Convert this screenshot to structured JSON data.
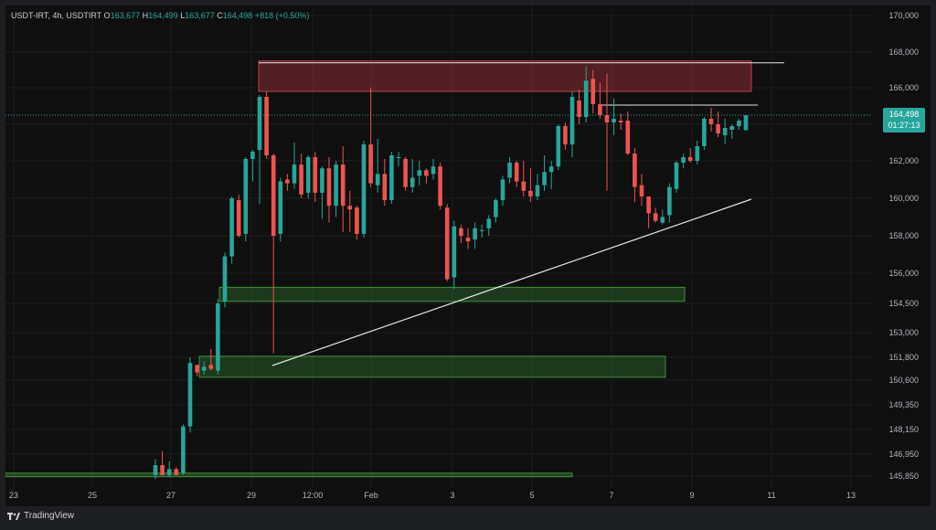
{
  "header": {
    "symbol": "USDT-IRT, 4h, USDTIRT",
    "o_label": "O",
    "o": "163,677",
    "h_label": "H",
    "h": "164,499",
    "l_label": "L",
    "l": "163,677",
    "c_label": "C",
    "c": "164,498",
    "change": "+818 (+0.50%)"
  },
  "last_price": {
    "value": "164,498",
    "countdown": "01:27:13"
  },
  "footer": {
    "brand": "TradingView"
  },
  "colors": {
    "up": "#26a69a",
    "down": "#ef5350",
    "background": "#0f0f0f",
    "supply_zone": "#8a2b34",
    "demand_zone": "#2e6b2c",
    "lines": "#e6e6e6"
  },
  "chart_data": {
    "type": "candlestick",
    "timeframe": "4h",
    "y_ticks": [
      "170,000",
      "168,000",
      "166,000",
      "164,000",
      "162,000",
      "160,000",
      "158,000",
      "156,000",
      "154,500",
      "153,000",
      "151,800",
      "150,600",
      "149,350",
      "148,150",
      "146,950",
      "145,850"
    ],
    "x_ticks": [
      "23",
      "25",
      "27",
      "29",
      "12:00",
      "Feb",
      "3",
      "5",
      "7",
      "9",
      "11",
      "13"
    ],
    "candles": [
      [
        145900,
        146700,
        145700,
        146400
      ],
      [
        146400,
        147100,
        145900,
        145900
      ],
      [
        145900,
        146600,
        145800,
        146200
      ],
      [
        146200,
        146300,
        145900,
        145900
      ],
      [
        146000,
        148400,
        145900,
        148300
      ],
      [
        148300,
        151800,
        148000,
        151500
      ],
      [
        151400,
        151400,
        150800,
        151000
      ],
      [
        151100,
        151600,
        150900,
        151300
      ],
      [
        151400,
        152200,
        151100,
        151200
      ],
      [
        151100,
        154700,
        150900,
        154500
      ],
      [
        154600,
        157100,
        154300,
        156900
      ],
      [
        156900,
        160100,
        156500,
        160000
      ],
      [
        159900,
        160200,
        157900,
        158000
      ],
      [
        158100,
        162200,
        157700,
        162100
      ],
      [
        162100,
        162600,
        160900,
        162500
      ],
      [
        162600,
        165600,
        159700,
        165500
      ],
      [
        165500,
        165800,
        162100,
        162300
      ],
      [
        162300,
        162400,
        152000,
        158000
      ],
      [
        158100,
        161100,
        157700,
        160900
      ],
      [
        161000,
        161300,
        160400,
        160800
      ],
      [
        160800,
        163000,
        160500,
        161800
      ],
      [
        161800,
        162400,
        160000,
        160200
      ],
      [
        160300,
        162300,
        160000,
        162200
      ],
      [
        162200,
        162500,
        159800,
        160300
      ],
      [
        160300,
        161700,
        158900,
        161600
      ],
      [
        161600,
        162200,
        158700,
        159600
      ],
      [
        159600,
        162000,
        159000,
        161800
      ],
      [
        161800,
        162800,
        158200,
        159600
      ],
      [
        159600,
        160400,
        158200,
        159400
      ],
      [
        159500,
        159600,
        157800,
        158100
      ],
      [
        158100,
        163100,
        157900,
        162900
      ],
      [
        162900,
        166000,
        160600,
        160800
      ],
      [
        160700,
        163200,
        160300,
        161300
      ],
      [
        161300,
        162100,
        159600,
        159900
      ],
      [
        159900,
        162500,
        159700,
        162300
      ],
      [
        162200,
        162500,
        161700,
        162200
      ],
      [
        162100,
        162200,
        160400,
        160600
      ],
      [
        160600,
        162100,
        160300,
        161100
      ],
      [
        161200,
        162000,
        160700,
        161500
      ],
      [
        161500,
        161600,
        160800,
        161200
      ],
      [
        161300,
        162100,
        161000,
        161700
      ],
      [
        161700,
        161900,
        159400,
        159600
      ],
      [
        159500,
        159700,
        155600,
        155700
      ],
      [
        155800,
        158800,
        155200,
        158500
      ],
      [
        158400,
        158600,
        157600,
        158000
      ],
      [
        157900,
        158400,
        157300,
        157700
      ],
      [
        157800,
        158700,
        157300,
        158400
      ],
      [
        158300,
        158600,
        157900,
        158300
      ],
      [
        158400,
        159100,
        158000,
        158900
      ],
      [
        159000,
        160000,
        158700,
        159900
      ],
      [
        159900,
        161200,
        159600,
        161000
      ],
      [
        161100,
        162200,
        160800,
        161900
      ],
      [
        161900,
        162000,
        160600,
        160900
      ],
      [
        160900,
        162000,
        160100,
        160400
      ],
      [
        160400,
        161600,
        159800,
        160100
      ],
      [
        160100,
        161300,
        159900,
        160700
      ],
      [
        160700,
        162300,
        160400,
        161400
      ],
      [
        161400,
        162000,
        160500,
        161700
      ],
      [
        161700,
        164000,
        161500,
        163900
      ],
      [
        163900,
        164100,
        162600,
        162900
      ],
      [
        162900,
        165800,
        162200,
        165500
      ],
      [
        165300,
        165900,
        164000,
        164400
      ],
      [
        164400,
        167200,
        164100,
        166400
      ],
      [
        166500,
        167000,
        164600,
        165100
      ],
      [
        165100,
        166300,
        164300,
        164500
      ],
      [
        164500,
        166800,
        160400,
        164100
      ],
      [
        164100,
        165400,
        163400,
        164300
      ],
      [
        164200,
        164600,
        163700,
        164100
      ],
      [
        164200,
        164700,
        162300,
        162400
      ],
      [
        162400,
        162700,
        159800,
        160600
      ],
      [
        160700,
        161300,
        159600,
        160100
      ],
      [
        160100,
        160100,
        158400,
        159200
      ],
      [
        159200,
        159500,
        158700,
        158800
      ],
      [
        158700,
        159400,
        158600,
        159000
      ],
      [
        159100,
        160800,
        158700,
        160600
      ],
      [
        160500,
        162000,
        160300,
        161900
      ],
      [
        161900,
        162400,
        161600,
        162200
      ],
      [
        162200,
        162700,
        161900,
        162000
      ],
      [
        162000,
        163100,
        161800,
        162800
      ],
      [
        162800,
        164400,
        162600,
        164300
      ],
      [
        164300,
        164900,
        163600,
        164000
      ],
      [
        164000,
        164700,
        163300,
        163500
      ],
      [
        163400,
        164300,
        162900,
        163800
      ],
      [
        163700,
        164000,
        163200,
        163900
      ],
      [
        163900,
        164300,
        163700,
        164200
      ],
      [
        163677,
        164499,
        163677,
        164498
      ]
    ]
  }
}
